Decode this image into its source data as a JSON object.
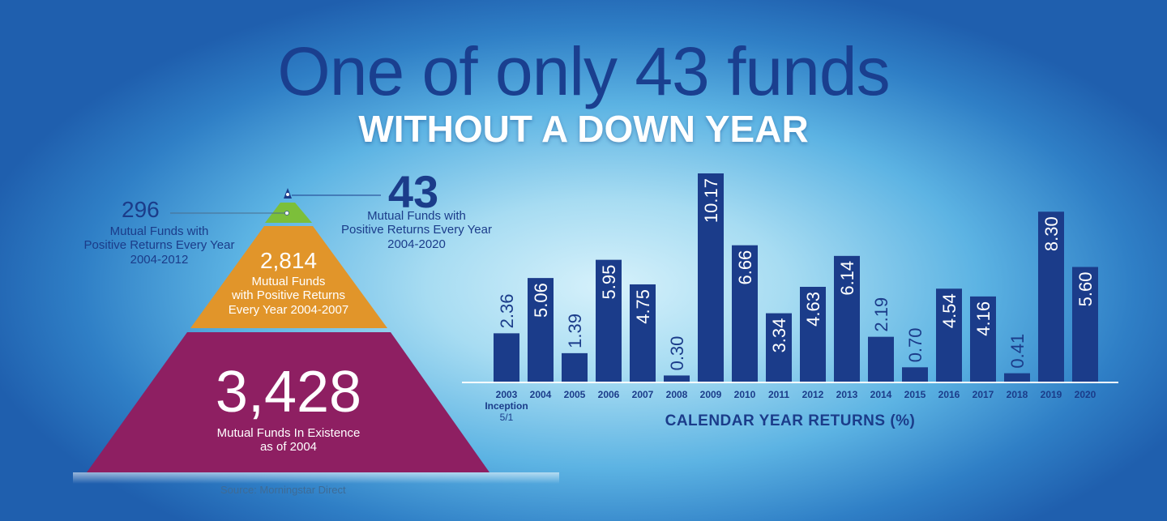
{
  "headline": "One of only 43 funds",
  "subheadline": "WITHOUT A DOWN YEAR",
  "pyramid": {
    "top": {
      "number": "43",
      "line1": "Mutual Funds with",
      "line2": "Positive Returns Every Year",
      "line3": "2004-2020",
      "color": "#1b3c8a"
    },
    "tier1": {
      "number": "296",
      "line1": "Mutual Funds with",
      "line2": "Positive Returns Every Year",
      "line3": "2004-2012",
      "color": "#7cbf3a"
    },
    "tier2": {
      "number": "2,814",
      "line1": "Mutual Funds",
      "line2": "with Positive Returns",
      "line3": "Every Year 2004-2007",
      "color": "#e1952a"
    },
    "tier3": {
      "number": "3,428",
      "line1": "Mutual Funds In Existence",
      "line2": "as of 2004",
      "color": "#8e1f62"
    }
  },
  "source": "Source: Morningstar Direct",
  "chart_data": {
    "type": "bar",
    "categories": [
      "2003",
      "2004",
      "2005",
      "2006",
      "2007",
      "2008",
      "2009",
      "2010",
      "2011",
      "2012",
      "2013",
      "2014",
      "2015",
      "2016",
      "2017",
      "2018",
      "2019",
      "2020"
    ],
    "category_note": "Inception 5/1",
    "values": [
      2.36,
      5.06,
      1.39,
      5.95,
      4.75,
      0.3,
      10.17,
      6.66,
      3.34,
      4.63,
      6.14,
      2.19,
      0.7,
      4.54,
      4.16,
      0.41,
      8.3,
      5.6
    ],
    "value_labels": [
      "2.36",
      "5.06",
      "1.39",
      "5.95",
      "4.75",
      "0.30",
      "10.17",
      "6.66",
      "3.34",
      "4.63",
      "6.14",
      "2.19",
      "0.70",
      "4.54",
      "4.16",
      "0.41",
      "8.30",
      "5.60"
    ],
    "xlabel": "CALENDAR YEAR RETURNS (%)",
    "ylim": [
      0,
      10.17
    ],
    "bar_color": "#1b3c8a"
  }
}
